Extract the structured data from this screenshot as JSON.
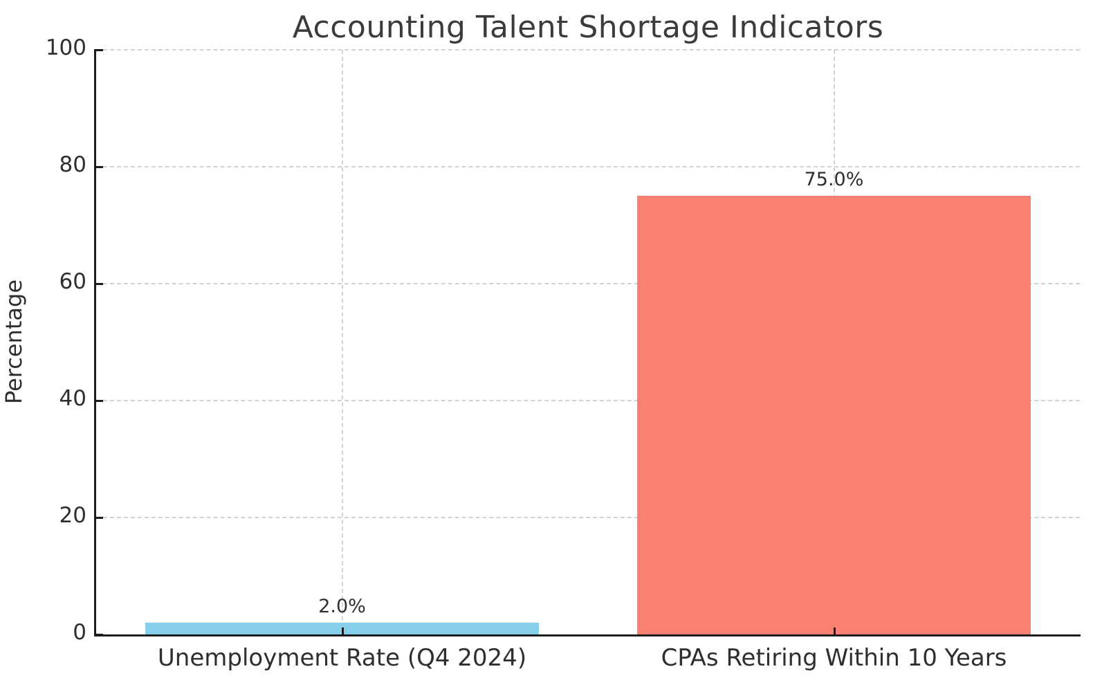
{
  "title": "Accounting Talent Shortage Indicators",
  "chart_data": {
    "type": "bar",
    "title": "Accounting Talent Shortage Indicators",
    "xlabel": "",
    "ylabel": "Percentage",
    "categories": [
      "Unemployment Rate (Q4 2024)",
      "CPAs Retiring Within 10 Years"
    ],
    "values": [
      2.0,
      75.0
    ],
    "value_labels": [
      "2.0%",
      "75.0%"
    ],
    "bar_colors": [
      "#87CEEB",
      "#FA8072"
    ],
    "ylim": [
      0,
      100
    ],
    "yticks": [
      0,
      20,
      40,
      60,
      80,
      100
    ],
    "ytick_labels": [
      "0",
      "20",
      "40",
      "60",
      "80",
      "100"
    ],
    "bar_width_fraction": 0.8,
    "grid": "dashed-both-axes",
    "grid_color": "#d2d2d2",
    "spine_color": "#1c1c1c",
    "text_color": "#2e2e2e",
    "background_color": "#ffffff",
    "legend": "none"
  }
}
